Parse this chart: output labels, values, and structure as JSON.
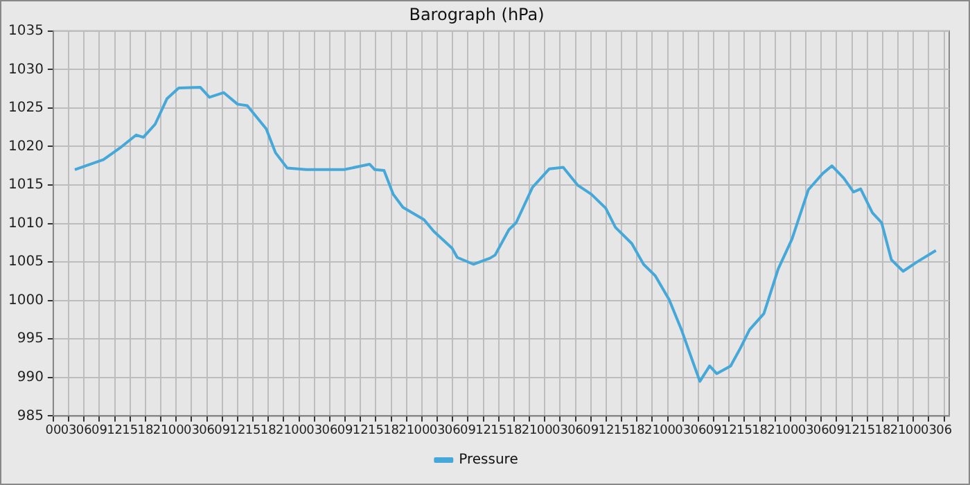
{
  "chart_data": {
    "type": "line",
    "title": "Barograph (hPa)",
    "x": [
      4.2,
      9.8,
      13,
      16.2,
      17.6,
      19.9,
      22.2,
      24.5,
      28.7,
      30.5,
      33.3,
      36,
      37.9,
      41.6,
      43.4,
      45.7,
      49.4,
      56.8,
      61.8,
      62.8,
      64.6,
      66.4,
      68.3,
      72.4,
      74.3,
      77.9,
      78.9,
      82.1,
      85.3,
      86.3,
      89,
      90.4,
      93.6,
      96.9,
      99.6,
      102.4,
      105.1,
      107.9,
      109.8,
      113,
      115.3,
      117.6,
      120.3,
      122.7,
      125,
      126.3,
      128.2,
      129.6,
      132.3,
      134.2,
      136,
      138.8,
      141.6,
      144.3,
      147.5,
      150.3,
      152.1,
      154.4,
      156.3,
      157.7,
      160,
      161.8,
      163.7,
      166,
      168.7,
      172.4
    ],
    "series": [
      {
        "name": "Pressure",
        "color": "#46a8d8",
        "values": [
          1017.0,
          1018.3,
          1019.8,
          1021.5,
          1021.2,
          1022.9,
          1026.2,
          1027.6,
          1027.7,
          1026.4,
          1027.0,
          1025.5,
          1025.3,
          1022.3,
          1019.2,
          1017.2,
          1017.0,
          1017.0,
          1017.7,
          1017.0,
          1016.9,
          1013.8,
          1012.1,
          1010.5,
          1009.0,
          1006.8,
          1005.6,
          1004.7,
          1005.5,
          1005.9,
          1009.2,
          1010.1,
          1014.7,
          1017.1,
          1017.3,
          1015.0,
          1013.8,
          1012.0,
          1009.5,
          1007.4,
          1004.7,
          1003.2,
          1000.1,
          996.2,
          991.9,
          989.5,
          991.5,
          990.5,
          991.5,
          993.8,
          996.2,
          998.3,
          1004.1,
          1008.0,
          1014.4,
          1016.5,
          1017.5,
          1015.9,
          1014.1,
          1014.5,
          1011.4,
          1010.1,
          1005.3,
          1003.8,
          1005.0,
          1006.5
        ]
      }
    ],
    "xlim": [
      0,
      175
    ],
    "xticks": [
      {
        "value": 0,
        "label": "00"
      },
      {
        "value": 3,
        "label": "03"
      },
      {
        "value": 6,
        "label": "06"
      },
      {
        "value": 9,
        "label": "09"
      },
      {
        "value": 12,
        "label": "12"
      },
      {
        "value": 15,
        "label": "15"
      },
      {
        "value": 18,
        "label": "18"
      },
      {
        "value": 21,
        "label": "21"
      },
      {
        "value": 24,
        "label": "00"
      },
      {
        "value": 27,
        "label": "03"
      },
      {
        "value": 30,
        "label": "06"
      },
      {
        "value": 33,
        "label": "09"
      },
      {
        "value": 36,
        "label": "12"
      },
      {
        "value": 39,
        "label": "15"
      },
      {
        "value": 42,
        "label": "18"
      },
      {
        "value": 45,
        "label": "21"
      },
      {
        "value": 48,
        "label": "00"
      },
      {
        "value": 51,
        "label": "03"
      },
      {
        "value": 54,
        "label": "06"
      },
      {
        "value": 57,
        "label": "09"
      },
      {
        "value": 60,
        "label": "12"
      },
      {
        "value": 63,
        "label": "15"
      },
      {
        "value": 66,
        "label": "18"
      },
      {
        "value": 69,
        "label": "21"
      },
      {
        "value": 72,
        "label": "00"
      },
      {
        "value": 75,
        "label": "03"
      },
      {
        "value": 78,
        "label": "06"
      },
      {
        "value": 81,
        "label": "09"
      },
      {
        "value": 84,
        "label": "12"
      },
      {
        "value": 87,
        "label": "15"
      },
      {
        "value": 90,
        "label": "18"
      },
      {
        "value": 93,
        "label": "21"
      },
      {
        "value": 96,
        "label": "00"
      },
      {
        "value": 99,
        "label": "03"
      },
      {
        "value": 102,
        "label": "06"
      },
      {
        "value": 105,
        "label": "09"
      },
      {
        "value": 108,
        "label": "12"
      },
      {
        "value": 111,
        "label": "15"
      },
      {
        "value": 114,
        "label": "18"
      },
      {
        "value": 117,
        "label": "21"
      },
      {
        "value": 120,
        "label": "00"
      },
      {
        "value": 123,
        "label": "03"
      },
      {
        "value": 126,
        "label": "06"
      },
      {
        "value": 129,
        "label": "09"
      },
      {
        "value": 132,
        "label": "12"
      },
      {
        "value": 135,
        "label": "15"
      },
      {
        "value": 138,
        "label": "18"
      },
      {
        "value": 141,
        "label": "21"
      },
      {
        "value": 144,
        "label": "00"
      },
      {
        "value": 147,
        "label": "03"
      },
      {
        "value": 150,
        "label": "06"
      },
      {
        "value": 153,
        "label": "09"
      },
      {
        "value": 156,
        "label": "12"
      },
      {
        "value": 159,
        "label": "15"
      },
      {
        "value": 162,
        "label": "18"
      },
      {
        "value": 165,
        "label": "21"
      },
      {
        "value": 168,
        "label": "00"
      },
      {
        "value": 171,
        "label": "03"
      },
      {
        "value": 174,
        "label": "06"
      }
    ],
    "ylim": [
      985,
      1035
    ],
    "yticks": [
      985,
      990,
      995,
      1000,
      1005,
      1010,
      1015,
      1020,
      1025,
      1030,
      1035
    ],
    "grid": true,
    "legend": "bottom",
    "marker": "none",
    "line_style": "solid"
  }
}
